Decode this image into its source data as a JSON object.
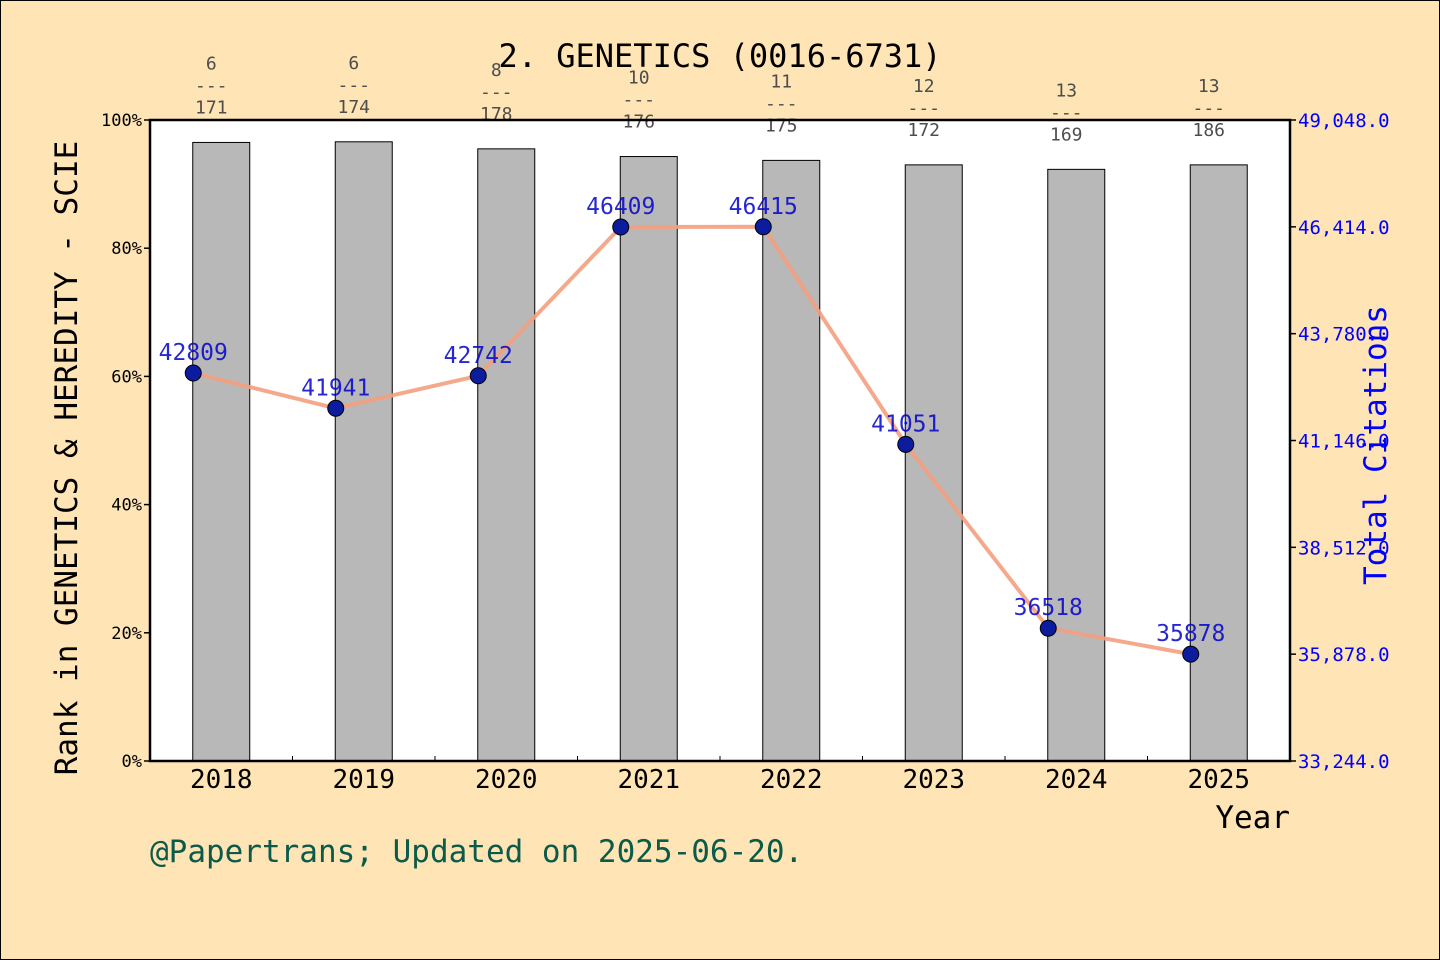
{
  "chart_data": {
    "type": "bar",
    "title": "2. GENETICS (0016-6731)",
    "xlabel": "Year",
    "ylabel": "Rank in GENETICS & HEREDITY - SCIE",
    "y2label": "Total Citations",
    "categories": [
      "2018",
      "2019",
      "2020",
      "2021",
      "2022",
      "2023",
      "2024",
      "2025"
    ],
    "y_ticks": [
      "0%",
      "20%",
      "40%",
      "60%",
      "80%",
      "100%"
    ],
    "ylim": [
      0,
      100
    ],
    "y2_ticks": [
      "33,244.0",
      "35,878.0",
      "38,512.0",
      "41,146.0",
      "43,780.0",
      "46,414.0",
      "49,048.0"
    ],
    "y2lim": [
      33244,
      49048
    ],
    "series": [
      {
        "kind": "bar",
        "values": [
          96.5,
          96.6,
          95.5,
          94.3,
          93.7,
          93.0,
          92.3,
          93.0
        ],
        "color": "#b8b8b8",
        "rank_labels": [
          {
            "rank": "6",
            "sep": "---",
            "total": "171"
          },
          {
            "rank": "6",
            "sep": "---",
            "total": "174"
          },
          {
            "rank": "8",
            "sep": "---",
            "total": "178"
          },
          {
            "rank": "10",
            "sep": "---",
            "total": "176"
          },
          {
            "rank": "11",
            "sep": "---",
            "total": "175"
          },
          {
            "rank": "12",
            "sep": "---",
            "total": "172"
          },
          {
            "rank": "13",
            "sep": "---",
            "total": "169"
          },
          {
            "rank": "13",
            "sep": "---",
            "total": "186"
          }
        ]
      },
      {
        "kind": "line",
        "axis": "right",
        "values": [
          42809,
          41941,
          42742,
          46409,
          46415,
          41051,
          36518,
          35878
        ],
        "labels": [
          "42809",
          "41941",
          "42742",
          "46409",
          "46415",
          "41051",
          "36518",
          "35878"
        ],
        "line_color": "#f4a07f",
        "marker_color": "#0b1d9e",
        "label_color": "#0000cc"
      }
    ],
    "grid": false,
    "legend": "none"
  },
  "footer": "@Papertrans; Updated on 2025-06-20.",
  "colors": {
    "background": "#ffe4b5",
    "plot_background": "#ffffff",
    "right_axis": "#0000ff",
    "footer_text": "#0b5a4a"
  }
}
